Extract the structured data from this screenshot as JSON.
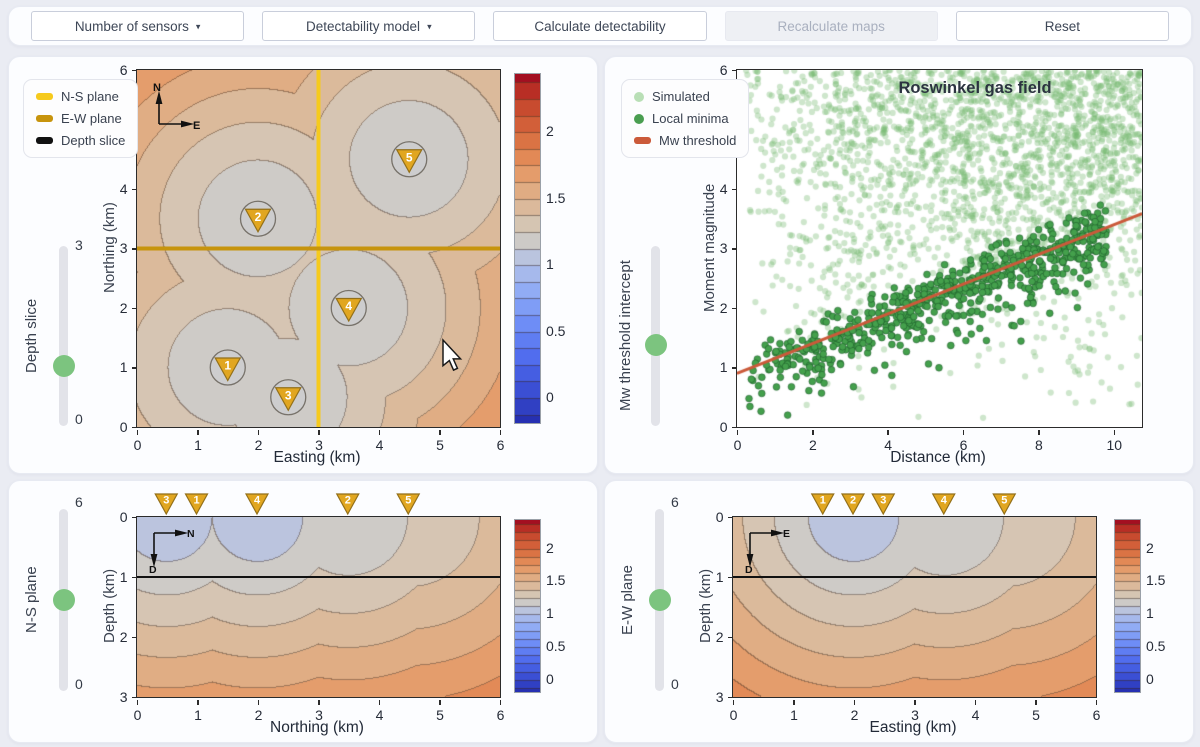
{
  "toolbar": {
    "buttons": [
      {
        "label": "Number of sensors",
        "caret": "▾",
        "enabled": true
      },
      {
        "label": "Detectability model",
        "caret": "▾",
        "enabled": true
      },
      {
        "label": "Calculate detectability",
        "caret": "",
        "enabled": true
      },
      {
        "label": "Recalculate maps",
        "caret": "",
        "enabled": false
      },
      {
        "label": "Reset",
        "caret": "",
        "enabled": true
      }
    ]
  },
  "colors": {
    "ns_plane": "#f6ca1d",
    "ew_plane": "#c7940d",
    "depth_slice": "#111111",
    "sensor_gold": "#e1a620",
    "sensor_gold_edge": "#93701a",
    "sensor_circle": "#cdcdce",
    "slider_handle": "#7cc47f",
    "threshold_line": "#cb5a3a",
    "simulated_green": "#8cc487",
    "local_minima_green": "#44a04c"
  },
  "sensors": [
    {
      "id": 1,
      "easting": 1.5,
      "northing": 1.0
    },
    {
      "id": 2,
      "easting": 2.0,
      "northing": 3.5
    },
    {
      "id": 3,
      "easting": 2.5,
      "northing": 0.5
    },
    {
      "id": 4,
      "easting": 3.5,
      "northing": 2.0
    },
    {
      "id": 5,
      "easting": 4.5,
      "northing": 4.5
    }
  ],
  "map_panel": {
    "legend": [
      {
        "label": "N-S plane",
        "color": "#f6ca1d"
      },
      {
        "label": "E-W plane",
        "color": "#c7940d"
      },
      {
        "label": "Depth slice",
        "color": "#111111"
      }
    ],
    "slider": {
      "label": "Depth slice",
      "min": 0,
      "max": 3,
      "value": 1,
      "min_label": "0",
      "max_label": "3"
    },
    "xlabel": "Easting (km)",
    "ylabel": "Northing (km)",
    "x_ticks": [
      0,
      1,
      2,
      3,
      4,
      5,
      6
    ],
    "y_ticks": [
      0,
      1,
      2,
      3,
      4,
      5,
      6
    ],
    "compass": {
      "up": "N",
      "right": "E"
    },
    "ns_plane_easting": 3,
    "ew_plane_northing": 3,
    "colorbar_ticks": [
      2,
      1.5,
      1,
      0.5,
      0
    ]
  },
  "scatter_panel": {
    "legend": [
      {
        "label": "Simulated"
      },
      {
        "label": "Local minima"
      },
      {
        "label": "Mw threshold"
      }
    ],
    "slider": {
      "label": "Mw threshold intercept",
      "min": 0,
      "max": 2,
      "value": 0.9
    },
    "title": "Roswinkel gas field",
    "xlabel": "Distance (km)",
    "ylabel": "Moment magnitude",
    "x_ticks": [
      0,
      2,
      4,
      6,
      8,
      10
    ],
    "y_ticks": [
      0,
      1,
      2,
      3,
      4,
      5,
      6
    ],
    "x_max": 10.75,
    "y_max": 6
  },
  "ns_panel": {
    "slider": {
      "label": "N-S plane",
      "min": 0,
      "max": 6,
      "value": 3,
      "min_label": "0",
      "max_label": "6"
    },
    "xlabel": "Northing (km)",
    "ylabel": "Depth (km)",
    "x_ticks": [
      0,
      1,
      2,
      3,
      4,
      5,
      6
    ],
    "y_ticks": [
      0,
      1,
      2,
      3
    ],
    "compass": {
      "right": "N",
      "down": "D"
    },
    "depth_line_km": 1,
    "colorbar_ticks": [
      2,
      1.5,
      1,
      0.5,
      0
    ]
  },
  "ew_panel": {
    "slider": {
      "label": "E-W plane",
      "min": 0,
      "max": 6,
      "value": 3,
      "min_label": "0",
      "max_label": "6"
    },
    "xlabel": "Easting (km)",
    "ylabel": "Depth (km)",
    "x_ticks": [
      0,
      1,
      2,
      3,
      4,
      5,
      6
    ],
    "y_ticks": [
      0,
      1,
      2,
      3
    ],
    "compass": {
      "right": "E",
      "down": "D"
    },
    "depth_line_km": 1,
    "colorbar_ticks": [
      2,
      1.5,
      1,
      0.5,
      0
    ]
  },
  "chart_data": [
    {
      "type": "heatmap",
      "name": "detectability-map-depth-slice",
      "xlabel": "Easting (km)",
      "ylabel": "Northing (km)",
      "x_range": [
        0,
        6
      ],
      "y_range": [
        0,
        6
      ],
      "depth_slice_km": 1,
      "value_model": "Mw_threshold(x,y) = 0.9 + 0.25 * distance_km_to_nearest_sensor_3d",
      "contour_step": 0.125,
      "colorbar": {
        "ticks": [
          0,
          0.5,
          1,
          1.5,
          2
        ],
        "range": [
          -0.19,
          2.44
        ],
        "colormap": "coolwarm blue-gray-red"
      },
      "sensors": [
        [
          1.5,
          1.0
        ],
        [
          2.0,
          3.5
        ],
        [
          2.5,
          0.5
        ],
        [
          3.5,
          2.0
        ],
        [
          4.5,
          4.5
        ]
      ],
      "overlays": {
        "ns_plane_vertical_line_x": 3,
        "ew_plane_horizontal_line_y": 3
      }
    },
    {
      "type": "scatter",
      "name": "roswinkel-gas-field",
      "title": "Roswinkel gas field",
      "xlabel": "Distance (km)",
      "ylabel": "Moment magnitude",
      "x_range": [
        0,
        10.75
      ],
      "y_range": [
        0,
        6
      ],
      "series": [
        {
          "name": "Simulated",
          "style": "small translucent light-green dots",
          "approx_count": 2000,
          "distribution": "dense for magnitudes above threshold line, densest between Mw 3-6, spanning full distance range"
        },
        {
          "name": "Local minima",
          "style": "solid dark-green dots",
          "approx_count": 650,
          "distribution": "clustered along and below the threshold line, distances 0.3-9.8 km, Mw 0.15 to ~0.45 above line"
        }
      ],
      "line": {
        "name": "Mw threshold",
        "intercept": 0.9,
        "slope": 0.25,
        "x_span": [
          0,
          10.75
        ]
      },
      "legend_position": "outside upper-left",
      "grid": false
    },
    {
      "type": "heatmap",
      "name": "ns-plane-cross-section",
      "xlabel": "Northing (km)",
      "ylabel": "Depth (km)",
      "x_range": [
        0,
        6
      ],
      "y_range": [
        0,
        3
      ],
      "y_inverted": true,
      "section_plane": "vertical N-S plane at Easting = 3 km",
      "value_model": "Mw_threshold(n,d) = 0.9 + 0.25 * distance_km_to_nearest_sensor_3d",
      "contour_step": 0.125,
      "colorbar": {
        "ticks": [
          0,
          0.5,
          1,
          1.5,
          2
        ],
        "range": [
          -0.19,
          2.44
        ]
      },
      "sensor_markers_along_top_northing": {
        "3": 0.5,
        "1": 1.0,
        "4": 2.0,
        "2": 3.5,
        "5": 4.5
      },
      "depth_slice_line_km": 1
    },
    {
      "type": "heatmap",
      "name": "ew-plane-cross-section",
      "xlabel": "Easting (km)",
      "ylabel": "Depth (km)",
      "x_range": [
        0,
        6
      ],
      "y_range": [
        0,
        3
      ],
      "y_inverted": true,
      "section_plane": "vertical E-W plane at Northing = 3 km",
      "value_model": "Mw_threshold(e,d) = 0.9 + 0.25 * distance_km_to_nearest_sensor_3d",
      "contour_step": 0.125,
      "colorbar": {
        "ticks": [
          0,
          0.5,
          1,
          1.5,
          2
        ],
        "range": [
          -0.19,
          2.44
        ]
      },
      "sensor_markers_along_top_easting": {
        "1": 1.5,
        "2": 2.0,
        "3": 2.5,
        "4": 3.5,
        "5": 4.5
      },
      "depth_slice_line_km": 1
    }
  ]
}
